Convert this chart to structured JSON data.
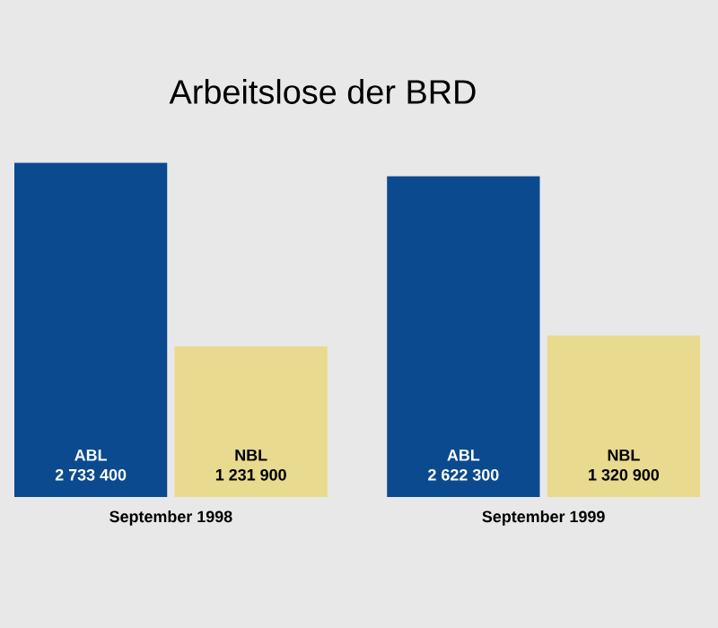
{
  "chart_data": {
    "type": "bar",
    "title": "Arbeitslose der BRD",
    "categories": [
      "September 1998",
      "September 1999"
    ],
    "series": [
      {
        "name": "ABL",
        "color": "#0b4a8e",
        "values": [
          2733400,
          2622300
        ],
        "value_labels": [
          "2 733 400",
          "2 622 300"
        ]
      },
      {
        "name": "NBL",
        "color": "#e8da8e",
        "values": [
          1231900,
          1320900
        ],
        "value_labels": [
          "1 231 900",
          "1 320 900"
        ]
      }
    ]
  }
}
